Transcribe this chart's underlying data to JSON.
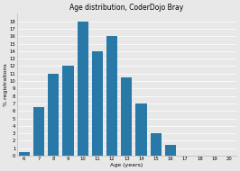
{
  "title": "Age distribution, CoderDojo Bray",
  "xlabel": "Age (years)",
  "ylabel": "% registrations",
  "ages": [
    6,
    7,
    8,
    9,
    10,
    11,
    12,
    13,
    14,
    15,
    16,
    17,
    18,
    19,
    20
  ],
  "values": [
    0.5,
    6.5,
    11,
    12,
    18,
    14,
    16,
    10.5,
    7,
    3,
    1.5,
    0,
    0,
    0,
    0
  ],
  "bar_color": "#2878a8",
  "ylim": [
    0,
    19
  ],
  "yticks": [
    0,
    1,
    2,
    3,
    4,
    5,
    6,
    7,
    8,
    9,
    10,
    11,
    12,
    13,
    14,
    15,
    16,
    17,
    18
  ],
  "background_color": "#e8e8e8",
  "title_fontsize": 5.5,
  "label_fontsize": 4.5,
  "tick_fontsize": 3.8
}
